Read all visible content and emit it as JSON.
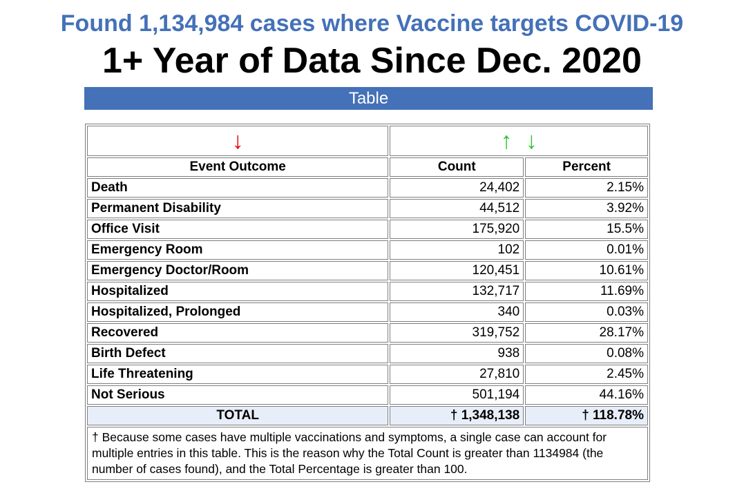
{
  "header": {
    "cases_line": "Found 1,134,984 cases where Vaccine targets COVID-19",
    "subtitle": "1+ Year of Data Since Dec. 2020"
  },
  "banner": {
    "label": "Table"
  },
  "table": {
    "sort": {
      "outcome_sort_arrow": "↓",
      "value_sort_up_arrow": "↑",
      "value_sort_down_arrow": "↓"
    },
    "columns": {
      "outcome": "Event Outcome",
      "count": "Count",
      "percent": "Percent"
    },
    "rows": [
      {
        "outcome": "Death",
        "count": "24,402",
        "percent": "2.15%"
      },
      {
        "outcome": "Permanent Disability",
        "count": "44,512",
        "percent": "3.92%"
      },
      {
        "outcome": "Office Visit",
        "count": "175,920",
        "percent": "15.5%"
      },
      {
        "outcome": "Emergency Room",
        "count": "102",
        "percent": "0.01%"
      },
      {
        "outcome": "Emergency Doctor/Room",
        "count": "120,451",
        "percent": "10.61%"
      },
      {
        "outcome": "Hospitalized",
        "count": "132,717",
        "percent": "11.69%"
      },
      {
        "outcome": "Hospitalized, Prolonged",
        "count": "340",
        "percent": "0.03%"
      },
      {
        "outcome": "Recovered",
        "count": "319,752",
        "percent": "28.17%"
      },
      {
        "outcome": "Birth Defect",
        "count": "938",
        "percent": "0.08%"
      },
      {
        "outcome": "Life Threatening",
        "count": "27,810",
        "percent": "2.45%"
      },
      {
        "outcome": "Not Serious",
        "count": "501,194",
        "percent": "44.16%"
      }
    ],
    "total": {
      "label": "TOTAL",
      "count": "† 1,348,138",
      "percent": "† 118.78%"
    },
    "footnote": "† Because some cases have multiple vaccinations and symptoms, a single case can account for multiple entries in this table. This is the reason why the Total Count is greater than 1134984 (the number of cases found), and the Total Percentage is greater than 100."
  },
  "colors": {
    "heading_blue": "#4471b8",
    "banner_blue": "#4471b8",
    "sort_red": "#e60000",
    "sort_green": "#2fc42f",
    "total_row_bg": "#e8eef9"
  }
}
